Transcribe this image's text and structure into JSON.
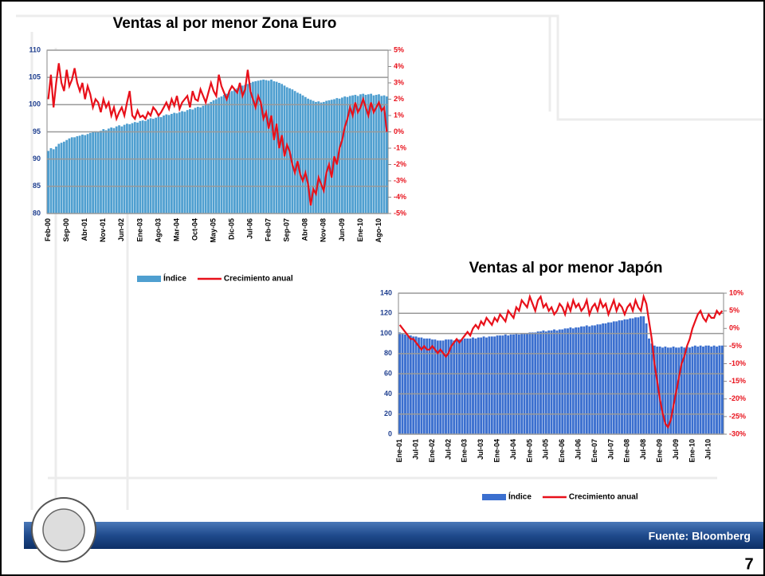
{
  "chart_data": [
    {
      "type": "combo",
      "title": "Ventas al por menor Zona Euro",
      "categories": [
        "Feb-00",
        null,
        null,
        null,
        null,
        null,
        null,
        "Sep-00",
        null,
        null,
        null,
        null,
        null,
        null,
        "Abr-01",
        null,
        null,
        null,
        null,
        null,
        null,
        "Nov-01",
        null,
        null,
        null,
        null,
        null,
        null,
        "Jun-02",
        null,
        null,
        null,
        null,
        null,
        null,
        "Ene-03",
        null,
        null,
        null,
        null,
        null,
        null,
        "Ago-03",
        null,
        null,
        null,
        null,
        null,
        null,
        "Mar-04",
        null,
        null,
        null,
        null,
        null,
        null,
        "Oct-04",
        null,
        null,
        null,
        null,
        null,
        null,
        "May-05",
        null,
        null,
        null,
        null,
        null,
        null,
        "Dic-05",
        null,
        null,
        null,
        null,
        null,
        null,
        "Jul-06",
        null,
        null,
        null,
        null,
        null,
        null,
        "Feb-07",
        null,
        null,
        null,
        null,
        null,
        null,
        "Sep-07",
        null,
        null,
        null,
        null,
        null,
        null,
        "Abr-08",
        null,
        null,
        null,
        null,
        null,
        null,
        "Nov-08",
        null,
        null,
        null,
        null,
        null,
        null,
        "Jun-09",
        null,
        null,
        null,
        null,
        null,
        null,
        "Ene-10",
        null,
        null,
        null,
        null,
        null,
        null,
        "Ago-10",
        null,
        null,
        null
      ],
      "series": [
        {
          "name": "Índice",
          "type": "bar",
          "color": "#4f9fd0",
          "values": [
            91.5,
            92,
            91.8,
            92.3,
            92.8,
            93,
            93.2,
            93.5,
            93.8,
            94,
            94,
            94.2,
            94.3,
            94.5,
            94.4,
            94.6,
            94.8,
            95,
            95.1,
            95,
            95.2,
            95.5,
            95.3,
            95.6,
            95.8,
            95.7,
            96,
            96.2,
            96,
            96.3,
            96.5,
            96.4,
            96.6,
            96.8,
            96.7,
            97,
            97.1,
            97,
            97.3,
            97.5,
            97.4,
            97.6,
            97.8,
            97.7,
            98,
            98.2,
            98.1,
            98.3,
            98.5,
            98.4,
            98.6,
            98.8,
            98.7,
            99,
            99.2,
            99.1,
            99.4,
            99.6,
            99.5,
            99.8,
            100,
            100.2,
            100.5,
            100.8,
            101,
            101.3,
            101.5,
            101.8,
            102,
            102.3,
            102.5,
            102.8,
            103,
            103.2,
            103.5,
            103.6,
            103.8,
            104,
            104.2,
            104.3,
            104.4,
            104.5,
            104.6,
            104.5,
            104.4,
            104.6,
            104.3,
            104.2,
            104,
            103.8,
            103.5,
            103.2,
            103,
            102.8,
            102.5,
            102.2,
            102,
            101.7,
            101.4,
            101.1,
            100.9,
            100.7,
            100.5,
            100.6,
            100.4,
            100.5,
            100.7,
            100.8,
            100.9,
            101,
            101.2,
            101.1,
            101.3,
            101.5,
            101.4,
            101.6,
            101.7,
            101.8,
            101.6,
            101.9,
            102,
            101.8,
            101.9,
            102,
            101.7,
            101.8,
            101.9,
            101.6,
            101.7,
            101.5
          ]
        },
        {
          "name": "Crecimiento anual",
          "type": "line",
          "axis": "y2",
          "color": "#e8101a",
          "values": [
            2,
            3.5,
            1.5,
            3,
            4.2,
            3,
            2.5,
            3.8,
            2.8,
            3.2,
            3.9,
            3,
            2.5,
            3,
            2,
            2.8,
            2.3,
            1.5,
            2,
            1.8,
            1.2,
            2,
            1.5,
            1.8,
            1,
            1.5,
            0.8,
            1.2,
            1.5,
            1,
            1.8,
            2.5,
            1,
            0.8,
            1.3,
            0.9,
            1,
            0.8,
            1.2,
            1,
            1.5,
            1.3,
            1,
            1.2,
            1.5,
            1.8,
            1.4,
            2,
            1.6,
            2.2,
            1.4,
            1.8,
            2,
            2.2,
            1.5,
            2.5,
            2,
            1.9,
            2.6,
            2.2,
            1.8,
            2.4,
            3,
            2.5,
            2.2,
            3.5,
            2.8,
            2.4,
            2,
            2.5,
            2.8,
            2.6,
            2.4,
            3,
            2.2,
            2.6,
            3.8,
            2.5,
            2,
            1.5,
            2.2,
            1.8,
            0.8,
            1.2,
            0.2,
            1,
            -0.5,
            0.5,
            -1,
            -0.2,
            -1.5,
            -0.8,
            -1.2,
            -2,
            -2.5,
            -1.8,
            -2.6,
            -3,
            -2.5,
            -3.2,
            -4.5,
            -3.5,
            -3.8,
            -2.8,
            -3.2,
            -3.6,
            -2.5,
            -2,
            -2.8,
            -1.5,
            -2,
            -1,
            -0.5,
            0.3,
            0.8,
            1.5,
            1,
            1.8,
            1.2,
            1.5,
            2,
            1.5,
            1,
            1.8,
            1.2,
            1.5,
            1.8,
            1.3,
            1.5,
            0
          ]
        }
      ],
      "ylim": [
        80,
        110
      ],
      "yticks": [
        80,
        85,
        90,
        95,
        100,
        105,
        110
      ],
      "y2lim": [
        -5,
        5
      ],
      "y2ticks": [
        {
          "value": -5,
          "label": "-5%"
        },
        {
          "value": -4,
          "label": "-4%"
        },
        {
          "value": -3,
          "label": "-3%"
        },
        {
          "value": -2,
          "label": "-2%"
        },
        {
          "value": -1,
          "label": "-1%"
        },
        {
          "value": 0,
          "label": "0%"
        },
        {
          "value": 1,
          "label": "1%"
        },
        {
          "value": 2,
          "label": "2%"
        },
        {
          "value": 3,
          "label": "3%"
        },
        {
          "value": 4,
          "label": "4%"
        },
        {
          "value": 5,
          "label": "5%"
        }
      ],
      "grid": true
    },
    {
      "type": "combo",
      "title": "Ventas al por menor Japón",
      "categories": [
        "Ene-01",
        null,
        null,
        null,
        null,
        null,
        "Jul-01",
        null,
        null,
        null,
        null,
        null,
        "Ene-02",
        null,
        null,
        null,
        null,
        null,
        "Jul-02",
        null,
        null,
        null,
        null,
        null,
        "Ene-03",
        null,
        null,
        null,
        null,
        null,
        "Jul-03",
        null,
        null,
        null,
        null,
        null,
        "Ene-04",
        null,
        null,
        null,
        null,
        null,
        "Jul-04",
        null,
        null,
        null,
        null,
        null,
        "Ene-05",
        null,
        null,
        null,
        null,
        null,
        "Jul-05",
        null,
        null,
        null,
        null,
        null,
        "Ene-06",
        null,
        null,
        null,
        null,
        null,
        "Jul-06",
        null,
        null,
        null,
        null,
        null,
        "Ene-07",
        null,
        null,
        null,
        null,
        null,
        "Jul-07",
        null,
        null,
        null,
        null,
        null,
        "Ene-08",
        null,
        null,
        null,
        null,
        null,
        "Jul-08",
        null,
        null,
        null,
        null,
        null,
        "Ene-09",
        null,
        null,
        null,
        null,
        null,
        "Jul-09",
        null,
        null,
        null,
        null,
        null,
        "Ene-10",
        null,
        null,
        null,
        null,
        null,
        "Jul-10",
        null,
        null,
        null,
        null,
        null
      ],
      "series": [
        {
          "name": "Índice",
          "type": "bar",
          "color": "#3b6fcf",
          "values": [
            101,
            100,
            99,
            98,
            98,
            97,
            97,
            96,
            96,
            95,
            95,
            95,
            94,
            94,
            93,
            93,
            93,
            94,
            94,
            94,
            93,
            94,
            94,
            94,
            95,
            95,
            95,
            96,
            95,
            96,
            96,
            97,
            96,
            97,
            97,
            97,
            98,
            98,
            98,
            99,
            98,
            99,
            99,
            100,
            99,
            100,
            100,
            100,
            101,
            101,
            101,
            102,
            102,
            103,
            102,
            103,
            103,
            104,
            103,
            104,
            104,
            105,
            105,
            106,
            105,
            106,
            106,
            107,
            107,
            108,
            107,
            108,
            108,
            109,
            109,
            110,
            110,
            111,
            111,
            112,
            112,
            113,
            113,
            114,
            114,
            115,
            115,
            116,
            116,
            117,
            117,
            110,
            95,
            90,
            88,
            87,
            87,
            86,
            87,
            86,
            86,
            87,
            86,
            86,
            87,
            86,
            87,
            86,
            87,
            88,
            87,
            88,
            87,
            88,
            88,
            87,
            88,
            87,
            88,
            88
          ]
        },
        {
          "name": "Crecimiento anual",
          "type": "line",
          "axis": "y2",
          "color": "#e8101a",
          "values": [
            1,
            0,
            -1,
            -2,
            -3,
            -3,
            -4,
            -5,
            -6,
            -5,
            -6,
            -6,
            -5,
            -6,
            -7,
            -6,
            -7,
            -8,
            -7,
            -5,
            -4,
            -3,
            -4,
            -3,
            -2,
            -1,
            -2,
            0,
            1,
            0,
            2,
            1,
            3,
            2,
            1,
            3,
            2,
            4,
            3,
            2,
            5,
            4,
            3,
            6,
            5,
            8,
            7,
            6,
            9,
            7,
            5,
            8,
            9,
            6,
            7,
            5,
            6,
            4,
            5,
            7,
            6,
            4,
            7,
            5,
            8,
            6,
            7,
            5,
            6,
            8,
            4,
            6,
            7,
            5,
            8,
            6,
            7,
            4,
            6,
            8,
            5,
            7,
            6,
            4,
            6,
            7,
            5,
            8,
            6,
            5,
            9,
            7,
            2,
            -3,
            -10,
            -15,
            -20,
            -24,
            -27,
            -28,
            -26,
            -22,
            -18,
            -14,
            -10,
            -8,
            -5,
            -3,
            0,
            2,
            4,
            5,
            3,
            2,
            4,
            3,
            3,
            5,
            4,
            5
          ]
        }
      ],
      "ylim": [
        0,
        140
      ],
      "yticks": [
        0,
        20,
        40,
        60,
        80,
        100,
        120,
        140
      ],
      "y2lim": [
        -30,
        10
      ],
      "y2ticks": [
        {
          "value": -30,
          "label": "-30%"
        },
        {
          "value": -25,
          "label": "-25%"
        },
        {
          "value": -20,
          "label": "-20%"
        },
        {
          "value": -15,
          "label": "-15%"
        },
        {
          "value": -10,
          "label": "-10%"
        },
        {
          "value": -5,
          "label": "-5%"
        },
        {
          "value": 0,
          "label": "0%"
        },
        {
          "value": 5,
          "label": "5%"
        },
        {
          "value": 10,
          "label": "10%"
        }
      ],
      "grid": true
    }
  ],
  "footer": {
    "source": "Fuente: Bloomberg",
    "page": "7"
  }
}
